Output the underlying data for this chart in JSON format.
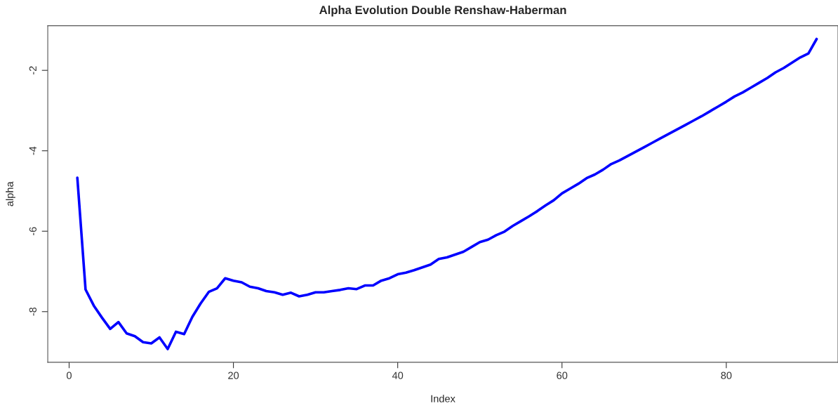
{
  "chart_data": {
    "type": "line",
    "title": "Alpha Evolution Double Renshaw-Haberman",
    "xlabel": "Index",
    "ylabel": "alpha",
    "x": [
      1,
      2,
      3,
      4,
      5,
      6,
      7,
      8,
      9,
      10,
      11,
      12,
      13,
      14,
      15,
      16,
      17,
      18,
      19,
      20,
      21,
      22,
      23,
      24,
      25,
      26,
      27,
      28,
      29,
      30,
      31,
      32,
      33,
      34,
      35,
      36,
      37,
      38,
      39,
      40,
      41,
      42,
      43,
      44,
      45,
      46,
      47,
      48,
      49,
      50,
      51,
      52,
      53,
      54,
      55,
      56,
      57,
      58,
      59,
      60,
      61,
      62,
      63,
      64,
      65,
      66,
      67,
      68,
      69,
      70,
      71,
      72,
      73,
      74,
      75,
      76,
      77,
      78,
      79,
      80,
      81,
      82,
      83,
      84,
      85,
      86,
      87,
      88,
      89,
      90,
      91
    ],
    "series": [
      {
        "color": "#0000ff",
        "values": [
          -4.67,
          -7.45,
          -7.85,
          -8.15,
          -8.43,
          -8.26,
          -8.54,
          -8.61,
          -8.76,
          -8.79,
          -8.64,
          -8.93,
          -8.5,
          -8.56,
          -8.13,
          -7.8,
          -7.51,
          -7.42,
          -7.17,
          -7.23,
          -7.27,
          -7.38,
          -7.42,
          -7.49,
          -7.52,
          -7.58,
          -7.53,
          -7.62,
          -7.58,
          -7.52,
          -7.52,
          -7.49,
          -7.46,
          -7.42,
          -7.44,
          -7.35,
          -7.35,
          -7.23,
          -7.17,
          -7.07,
          -7.03,
          -6.97,
          -6.9,
          -6.83,
          -6.69,
          -6.65,
          -6.58,
          -6.51,
          -6.39,
          -6.27,
          -6.21,
          -6.1,
          -6.01,
          -5.87,
          -5.75,
          -5.63,
          -5.5,
          -5.36,
          -5.23,
          -5.06,
          -4.94,
          -4.82,
          -4.68,
          -4.59,
          -4.47,
          -4.33,
          -4.24,
          -4.13,
          -4.02,
          -3.91,
          -3.8,
          -3.69,
          -3.58,
          -3.47,
          -3.36,
          -3.25,
          -3.14,
          -3.02,
          -2.9,
          -2.78,
          -2.65,
          -2.55,
          -2.43,
          -2.31,
          -2.19,
          -2.05,
          -1.94,
          -1.81,
          -1.68,
          -1.58,
          -1.22
        ]
      }
    ],
    "xlim": [
      -2.6,
      93.6
    ],
    "ylim": [
      -9.26,
      -0.89
    ],
    "xticks": [
      0,
      20,
      40,
      60,
      80
    ],
    "yticks": [
      -2,
      -4,
      -6,
      -8
    ],
    "grid": false,
    "marker": "none",
    "line_style": "solid"
  }
}
